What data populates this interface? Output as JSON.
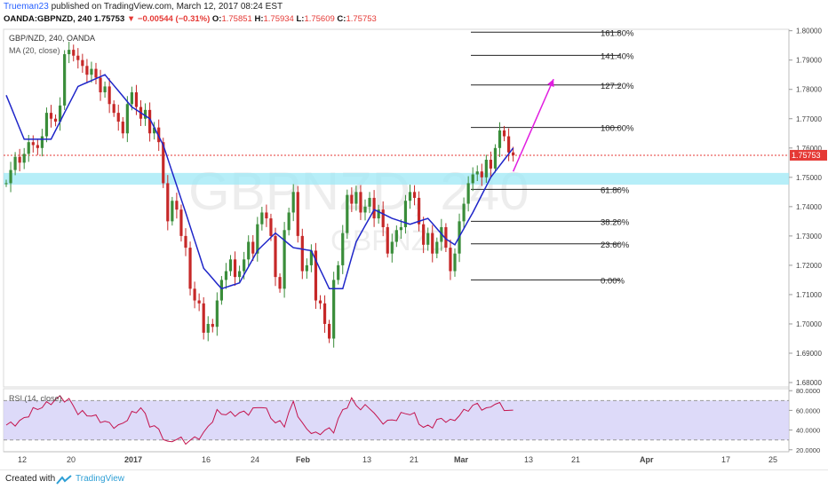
{
  "header": {
    "author": "Trueman23",
    "published_text": "published on TradingView.com, March 12, 2017 08:24 EST",
    "symbol": "OANDA:GBPNZD, 240",
    "last": "1.75753",
    "change": "▼ −0.00544 (−0.31%)",
    "o_label": "O:",
    "o_value": "1.75851",
    "h_label": "H:",
    "h_value": "1.75934",
    "l_label": "L:",
    "l_value": "1.75609",
    "c_label": "C:",
    "c_value": "1.75753"
  },
  "legend": {
    "symbol": "GBP/NZD, 240, OANDA",
    "ma": "MA (20, close)",
    "rsi": "RSI (14, close)"
  },
  "watermark": {
    "main": "GBPNZD, 240",
    "sub": "GBPNZD"
  },
  "footer": {
    "created": "Created with",
    "brand": "TradingView"
  },
  "colors": {
    "up": "#3a8d3a",
    "down": "#c62828",
    "ma": "#1f26c9",
    "rsi": "#c4144e",
    "zone": "#9ee8f5",
    "arrow": "#e11de0",
    "price_line": "#e53935",
    "rsi_band": "#d4d1f7",
    "grid": "#e6e6e6"
  },
  "chart_data": [
    {
      "type": "candlestick",
      "title": "GBP/NZD, 240, OANDA",
      "xlabel": "",
      "ylabel": "",
      "x_ticks": [
        "12",
        "20",
        "2017",
        "16",
        "24",
        "Feb",
        "13",
        "21",
        "Mar",
        "13",
        "21",
        "Apr",
        "17",
        "25"
      ],
      "y_ticks": [
        "1.68000",
        "1.69000",
        "1.70000",
        "1.71000",
        "1.72000",
        "1.73000",
        "1.74000",
        "1.75000",
        "1.76000",
        "1.77000",
        "1.78000",
        "1.79000",
        "1.80000"
      ],
      "ylim": [
        1.6785,
        1.8005
      ],
      "last_price": "1.75753",
      "grid": false,
      "anchors": [
        [
          0,
          1.748
        ],
        [
          1,
          1.7525
        ],
        [
          2,
          1.757
        ],
        [
          3,
          1.755
        ],
        [
          4,
          1.758
        ],
        [
          5,
          1.762
        ],
        [
          6,
          1.761
        ],
        [
          7,
          1.76
        ],
        [
          8,
          1.764
        ],
        [
          9,
          1.772
        ],
        [
          10,
          1.77
        ],
        [
          11,
          1.769
        ],
        [
          12,
          1.7745
        ],
        [
          13,
          1.792
        ],
        [
          14,
          1.7935
        ],
        [
          15,
          1.7915
        ],
        [
          16,
          1.79
        ],
        [
          17,
          1.788
        ],
        [
          18,
          1.785
        ],
        [
          19,
          1.787
        ],
        [
          20,
          1.784
        ],
        [
          21,
          1.779
        ],
        [
          22,
          1.781
        ],
        [
          23,
          1.775
        ],
        [
          24,
          1.772
        ],
        [
          25,
          1.769
        ],
        [
          26,
          1.765
        ],
        [
          27,
          1.775
        ],
        [
          28,
          1.779
        ],
        [
          29,
          1.774
        ],
        [
          30,
          1.77
        ],
        [
          31,
          1.773
        ],
        [
          32,
          1.765
        ],
        [
          33,
          1.767
        ],
        [
          34,
          1.762
        ],
        [
          35,
          1.748
        ],
        [
          36,
          1.735
        ],
        [
          37,
          1.742
        ],
        [
          38,
          1.739
        ],
        [
          39,
          1.73
        ],
        [
          40,
          1.726
        ],
        [
          41,
          1.712
        ],
        [
          42,
          1.708
        ],
        [
          43,
          1.707
        ],
        [
          44,
          1.697
        ],
        [
          45,
          1.7
        ],
        [
          46,
          1.699
        ],
        [
          47,
          1.708
        ],
        [
          48,
          1.715
        ],
        [
          49,
          1.718
        ],
        [
          50,
          1.722
        ],
        [
          51,
          1.716
        ],
        [
          52,
          1.718
        ],
        [
          53,
          1.722
        ],
        [
          54,
          1.728
        ],
        [
          55,
          1.724
        ],
        [
          56,
          1.734
        ],
        [
          57,
          1.738
        ],
        [
          58,
          1.736
        ],
        [
          59,
          1.73
        ],
        [
          60,
          1.716
        ],
        [
          61,
          1.712
        ],
        [
          62,
          1.732
        ],
        [
          63,
          1.738
        ],
        [
          64,
          1.745
        ],
        [
          65,
          1.73
        ],
        [
          66,
          1.718
        ],
        [
          67,
          1.72
        ],
        [
          68,
          1.725
        ],
        [
          69,
          1.708
        ],
        [
          70,
          1.707
        ],
        [
          71,
          1.7
        ],
        [
          72,
          1.695
        ],
        [
          73,
          1.715
        ],
        [
          74,
          1.72
        ],
        [
          75,
          1.731
        ],
        [
          76,
          1.744
        ],
        [
          77,
          1.741
        ],
        [
          78,
          1.745
        ],
        [
          79,
          1.738
        ],
        [
          80,
          1.74
        ],
        [
          81,
          1.743
        ],
        [
          82,
          1.736
        ],
        [
          83,
          1.739
        ],
        [
          84,
          1.733
        ],
        [
          85,
          1.724
        ],
        [
          86,
          1.728
        ],
        [
          87,
          1.732
        ],
        [
          88,
          1.733
        ],
        [
          89,
          1.742
        ],
        [
          90,
          1.745
        ],
        [
          91,
          1.743
        ],
        [
          92,
          1.734
        ],
        [
          93,
          1.727
        ],
        [
          94,
          1.731
        ],
        [
          95,
          1.724
        ],
        [
          96,
          1.728
        ],
        [
          97,
          1.733
        ],
        [
          98,
          1.726
        ],
        [
          99,
          1.718
        ],
        [
          100,
          1.724
        ],
        [
          101,
          1.735
        ],
        [
          102,
          1.741
        ],
        [
          103,
          1.748
        ],
        [
          104,
          1.751
        ],
        [
          105,
          1.752
        ],
        [
          106,
          1.75
        ],
        [
          107,
          1.756
        ],
        [
          108,
          1.753
        ],
        [
          109,
          1.76
        ],
        [
          110,
          1.766
        ],
        [
          111,
          1.764
        ],
        [
          112,
          1.7585
        ],
        [
          113,
          1.7575
        ]
      ],
      "ma_anchors": [
        [
          0,
          1.778
        ],
        [
          4,
          1.763
        ],
        [
          10,
          1.763
        ],
        [
          16,
          1.781
        ],
        [
          22,
          1.785
        ],
        [
          28,
          1.774
        ],
        [
          32,
          1.77
        ],
        [
          35,
          1.761
        ],
        [
          40,
          1.738
        ],
        [
          44,
          1.719
        ],
        [
          48,
          1.712
        ],
        [
          52,
          1.714
        ],
        [
          56,
          1.725
        ],
        [
          60,
          1.731
        ],
        [
          64,
          1.726
        ],
        [
          68,
          1.725
        ],
        [
          72,
          1.712
        ],
        [
          75,
          1.712
        ],
        [
          78,
          1.728
        ],
        [
          82,
          1.739
        ],
        [
          86,
          1.736
        ],
        [
          90,
          1.734
        ],
        [
          94,
          1.736
        ],
        [
          98,
          1.729
        ],
        [
          100,
          1.727
        ],
        [
          104,
          1.738
        ],
        [
          108,
          1.75
        ],
        [
          111,
          1.756
        ],
        [
          113,
          1.76
        ]
      ],
      "fibonacci": [
        {
          "label": "161.80%",
          "price": 1.7995
        },
        {
          "label": "141.40%",
          "price": 1.7916
        },
        {
          "label": "127.20%",
          "price": 1.7815
        },
        {
          "label": "100.00%",
          "price": 1.767
        },
        {
          "label": "61.80%",
          "price": 1.7459
        },
        {
          "label": "38.20%",
          "price": 1.735
        },
        {
          "label": "23.60%",
          "price": 1.7273
        },
        {
          "label": "0.00%",
          "price": 1.715
        }
      ],
      "zone": {
        "from": 1.7475,
        "to": 1.7515
      },
      "arrow": {
        "from_x": 113,
        "from_price": 1.752,
        "to_x": 122,
        "to_price": 1.7835
      }
    },
    {
      "type": "line",
      "title": "RSI (14, close)",
      "y_ticks": [
        "20.0000",
        "40.0000",
        "60.0000",
        "80.0000"
      ],
      "ylim": [
        18,
        82
      ],
      "band": [
        30,
        70
      ],
      "anchors": [
        [
          0,
          45
        ],
        [
          3,
          48
        ],
        [
          6,
          60
        ],
        [
          9,
          66
        ],
        [
          12,
          73
        ],
        [
          14,
          70
        ],
        [
          16,
          58
        ],
        [
          19,
          55
        ],
        [
          22,
          48
        ],
        [
          25,
          43
        ],
        [
          28,
          56
        ],
        [
          30,
          63
        ],
        [
          32,
          46
        ],
        [
          34,
          40
        ],
        [
          36,
          26
        ],
        [
          38,
          32
        ],
        [
          40,
          28
        ],
        [
          42,
          31
        ],
        [
          44,
          36
        ],
        [
          47,
          58
        ],
        [
          50,
          56
        ],
        [
          54,
          58
        ],
        [
          57,
          65
        ],
        [
          60,
          48
        ],
        [
          62,
          46
        ],
        [
          64,
          68
        ],
        [
          66,
          45
        ],
        [
          69,
          35
        ],
        [
          71,
          40
        ],
        [
          73,
          40
        ],
        [
          75,
          60
        ],
        [
          77,
          70
        ],
        [
          79,
          62
        ],
        [
          81,
          64
        ],
        [
          83,
          50
        ],
        [
          85,
          48
        ],
        [
          87,
          52
        ],
        [
          89,
          58
        ],
        [
          91,
          55
        ],
        [
          93,
          42
        ],
        [
          95,
          45
        ],
        [
          97,
          52
        ],
        [
          99,
          48
        ],
        [
          101,
          55
        ],
        [
          103,
          62
        ],
        [
          105,
          66
        ],
        [
          107,
          60
        ],
        [
          109,
          68
        ],
        [
          111,
          62
        ],
        [
          113,
          58
        ]
      ]
    }
  ]
}
